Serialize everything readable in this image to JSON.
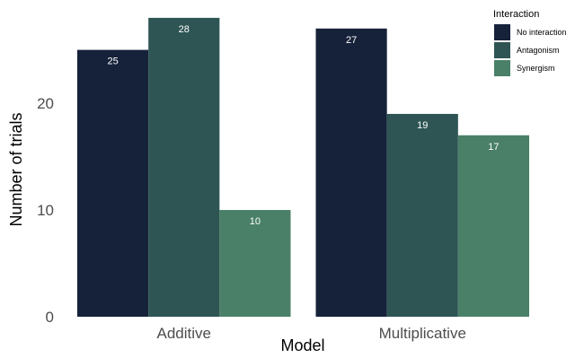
{
  "chart_data": {
    "type": "bar",
    "title": "",
    "xlabel": "Model",
    "ylabel": "Number of trials",
    "categories": [
      "Additive",
      "Multiplicative"
    ],
    "ylim": [
      0,
      29
    ],
    "yticks": [
      0,
      10,
      20
    ],
    "grid": false,
    "series": [
      {
        "name": "No interaction",
        "color": "#16213a",
        "values": [
          25,
          27
        ]
      },
      {
        "name": "Antagonism",
        "color": "#2e5554",
        "values": [
          28,
          19
        ]
      },
      {
        "name": "Synergism",
        "color": "#4a8068",
        "values": [
          10,
          17
        ]
      }
    ],
    "legend": {
      "title": "Interaction",
      "position": "top-right"
    }
  }
}
